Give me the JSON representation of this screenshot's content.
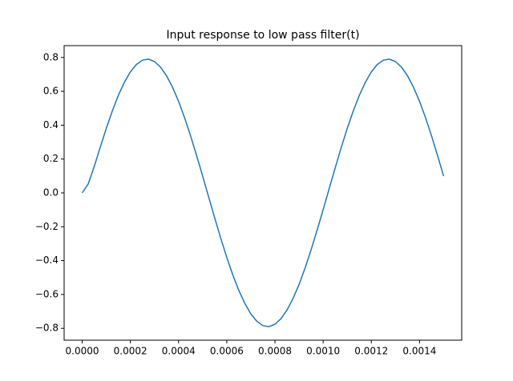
{
  "chart_data": {
    "type": "line",
    "title": "Input response to low pass filter(t)",
    "x": [
      0,
      2.5e-05,
      5e-05,
      7.5e-05,
      0.0001,
      0.000125,
      0.00015,
      0.000175,
      0.0002,
      0.000225,
      0.00025,
      0.000275,
      0.0003,
      0.000325,
      0.00035,
      0.000375,
      0.0004,
      0.000425,
      0.00045,
      0.000475,
      0.0005,
      0.000525,
      0.00055,
      0.000575,
      0.0006,
      0.000625,
      0.00065,
      0.000675,
      0.0007,
      0.000725,
      0.00075,
      0.000775,
      0.0008,
      0.000825,
      0.00085,
      0.000875,
      0.0009,
      0.000925,
      0.00095,
      0.000975,
      0.001,
      0.001025,
      0.00105,
      0.001075,
      0.0011,
      0.001125,
      0.00115,
      0.001175,
      0.0012,
      0.001225,
      0.00125,
      0.001275,
      0.0013,
      0.001325,
      0.00135,
      0.001375,
      0.0014,
      0.001425,
      0.00145,
      0.001475,
      0.0015
    ],
    "series": [
      {
        "color": "#1f77b4",
        "values": [
          0.0,
          0.053,
          0.156,
          0.27,
          0.381,
          0.484,
          0.576,
          0.653,
          0.715,
          0.759,
          0.784,
          0.79,
          0.776,
          0.743,
          0.692,
          0.624,
          0.541,
          0.444,
          0.336,
          0.22,
          0.099,
          -0.025,
          -0.148,
          -0.268,
          -0.381,
          -0.484,
          -0.576,
          -0.653,
          -0.715,
          -0.759,
          -0.784,
          -0.79,
          -0.776,
          -0.743,
          -0.692,
          -0.624,
          -0.541,
          -0.444,
          -0.336,
          -0.22,
          -0.099,
          0.025,
          0.148,
          0.268,
          0.381,
          0.484,
          0.576,
          0.653,
          0.715,
          0.759,
          0.784,
          0.79,
          0.776,
          0.743,
          0.692,
          0.624,
          0.541,
          0.444,
          0.336,
          0.22,
          0.099
        ]
      }
    ],
    "xlim": [
      -7.5e-05,
      0.001575
    ],
    "xticks": [
      {
        "value": 0,
        "label": "0.0000"
      },
      {
        "value": 0.0002,
        "label": "0.0002"
      },
      {
        "value": 0.0004,
        "label": "0.0004"
      },
      {
        "value": 0.0006,
        "label": "0.0006"
      },
      {
        "value": 0.0008,
        "label": "0.0008"
      },
      {
        "value": 0.001,
        "label": "0.0010"
      },
      {
        "value": 0.0012,
        "label": "0.0012"
      },
      {
        "value": 0.0014,
        "label": "0.0014"
      }
    ],
    "ylim": [
      -0.87,
      0.87
    ],
    "yticks": [
      {
        "value": -0.8,
        "label": "−0.8"
      },
      {
        "value": -0.6,
        "label": "−0.6"
      },
      {
        "value": -0.4,
        "label": "−0.4"
      },
      {
        "value": -0.2,
        "label": "−0.2"
      },
      {
        "value": 0,
        "label": "0.0"
      },
      0.2,
      0.4,
      0.6,
      0.8
    ],
    "grid": false
  }
}
